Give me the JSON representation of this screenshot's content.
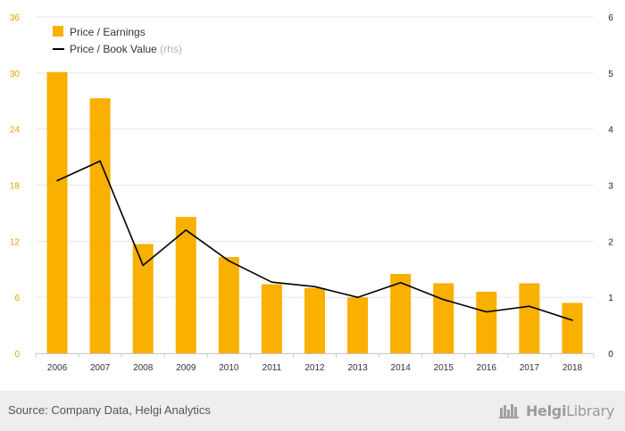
{
  "chart_data": {
    "type": "bar",
    "categories": [
      "2006",
      "2007",
      "2008",
      "2009",
      "2010",
      "2011",
      "2012",
      "2013",
      "2014",
      "2015",
      "2016",
      "2017",
      "2018"
    ],
    "series": [
      {
        "name": "Price / Earnings",
        "type": "bar",
        "axis": "left",
        "values": [
          30.1,
          27.3,
          11.7,
          14.6,
          10.3,
          7.4,
          7.0,
          6.0,
          8.5,
          7.5,
          6.6,
          7.5,
          5.4
        ]
      },
      {
        "name": "Price / Book Value",
        "legend_suffix": "(rhs)",
        "type": "line",
        "axis": "right",
        "values": [
          3.08,
          3.43,
          1.57,
          2.2,
          1.65,
          1.27,
          1.19,
          1.0,
          1.26,
          0.96,
          0.74,
          0.84,
          0.59
        ]
      }
    ],
    "y_left": {
      "ticks": [
        "0",
        "6",
        "12",
        "18",
        "24",
        "30",
        "36"
      ],
      "lim": [
        0,
        36
      ]
    },
    "y_right": {
      "ticks": [
        "0",
        "1",
        "2",
        "3",
        "4",
        "5",
        "6"
      ],
      "lim": [
        0,
        6
      ]
    },
    "grid": true,
    "legend_position": "top-left",
    "colors": {
      "bar": "#f9b000",
      "line": "#000000",
      "left_tick": "#e8a000",
      "right_tick": "#222222",
      "grid": "#e6e6e6"
    }
  },
  "footer": {
    "source": "Source: Company Data, Helgi Analytics",
    "logo_text_bold": "Helgi",
    "logo_text": "Library"
  }
}
